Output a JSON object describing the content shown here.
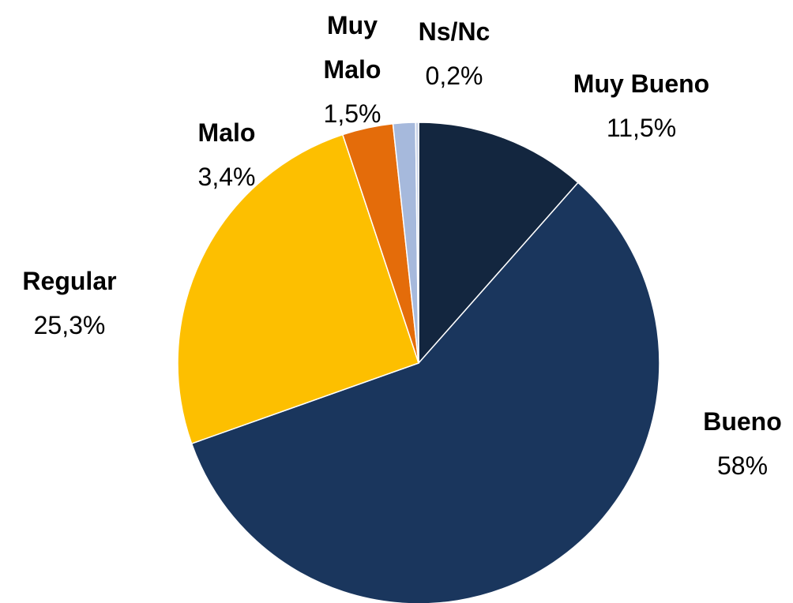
{
  "chart_data": {
    "type": "pie",
    "categories": [
      "Muy Bueno",
      "Bueno",
      "Regular",
      "Malo",
      "Muy Malo",
      "Ns/Nc"
    ],
    "values": [
      11.5,
      58,
      25.3,
      3.4,
      1.5,
      0.2
    ],
    "value_labels": [
      "11,5%",
      "58%",
      "25,3%",
      "3,4%",
      "1,5%",
      "0,2%"
    ],
    "colors": [
      "#13263f",
      "#1a365d",
      "#fdbf00",
      "#e46c0a",
      "#a6b9dc",
      "#c6d0e6"
    ]
  }
}
